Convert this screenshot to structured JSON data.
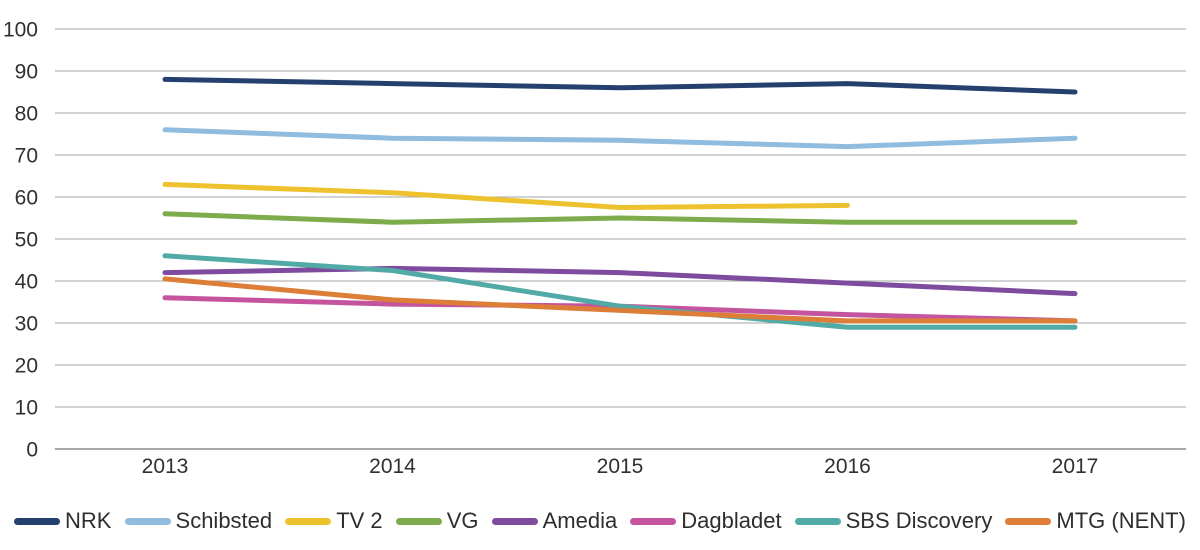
{
  "chart_data": {
    "type": "line",
    "title": "",
    "xlabel": "",
    "ylabel": "",
    "x": [
      "2013",
      "2014",
      "2015",
      "2016",
      "2017"
    ],
    "ylim": [
      0,
      100
    ],
    "ytick_step": 10,
    "yticks": [
      "0",
      "10",
      "20",
      "30",
      "40",
      "50",
      "60",
      "70",
      "80",
      "90",
      "100"
    ],
    "grid": "horizontal",
    "legend_position": "bottom",
    "series": [
      {
        "name": "NRK",
        "color": "#25406E",
        "values": [
          88,
          87,
          86,
          87,
          85
        ]
      },
      {
        "name": "Schibsted",
        "color": "#8FBCDF",
        "values": [
          76,
          74,
          73.5,
          72,
          74
        ]
      },
      {
        "name": "TV 2",
        "color": "#EEC22F",
        "values": [
          63,
          61,
          57.5,
          58,
          null
        ]
      },
      {
        "name": "VG",
        "color": "#7CAC4B",
        "values": [
          56,
          54,
          55,
          54,
          54
        ]
      },
      {
        "name": "Amedia",
        "color": "#7E4B9E",
        "values": [
          42,
          43,
          42,
          39.5,
          37
        ]
      },
      {
        "name": "Dagbladet",
        "color": "#C4549E",
        "values": [
          36,
          34.5,
          34,
          32,
          30.5
        ]
      },
      {
        "name": "SBS Discovery",
        "color": "#52AAA7",
        "values": [
          46,
          42.5,
          34,
          29,
          29
        ]
      },
      {
        "name": "MTG (NENT)",
        "color": "#DD7E38",
        "values": [
          40.5,
          35.5,
          33,
          30.5,
          30.5
        ]
      }
    ]
  },
  "style": {
    "gridline_color": "#A6A6A6",
    "axis_line_color": "#8C8C8C",
    "text_color": "#303030",
    "background": "#FFFFFF",
    "line_width": 5
  }
}
